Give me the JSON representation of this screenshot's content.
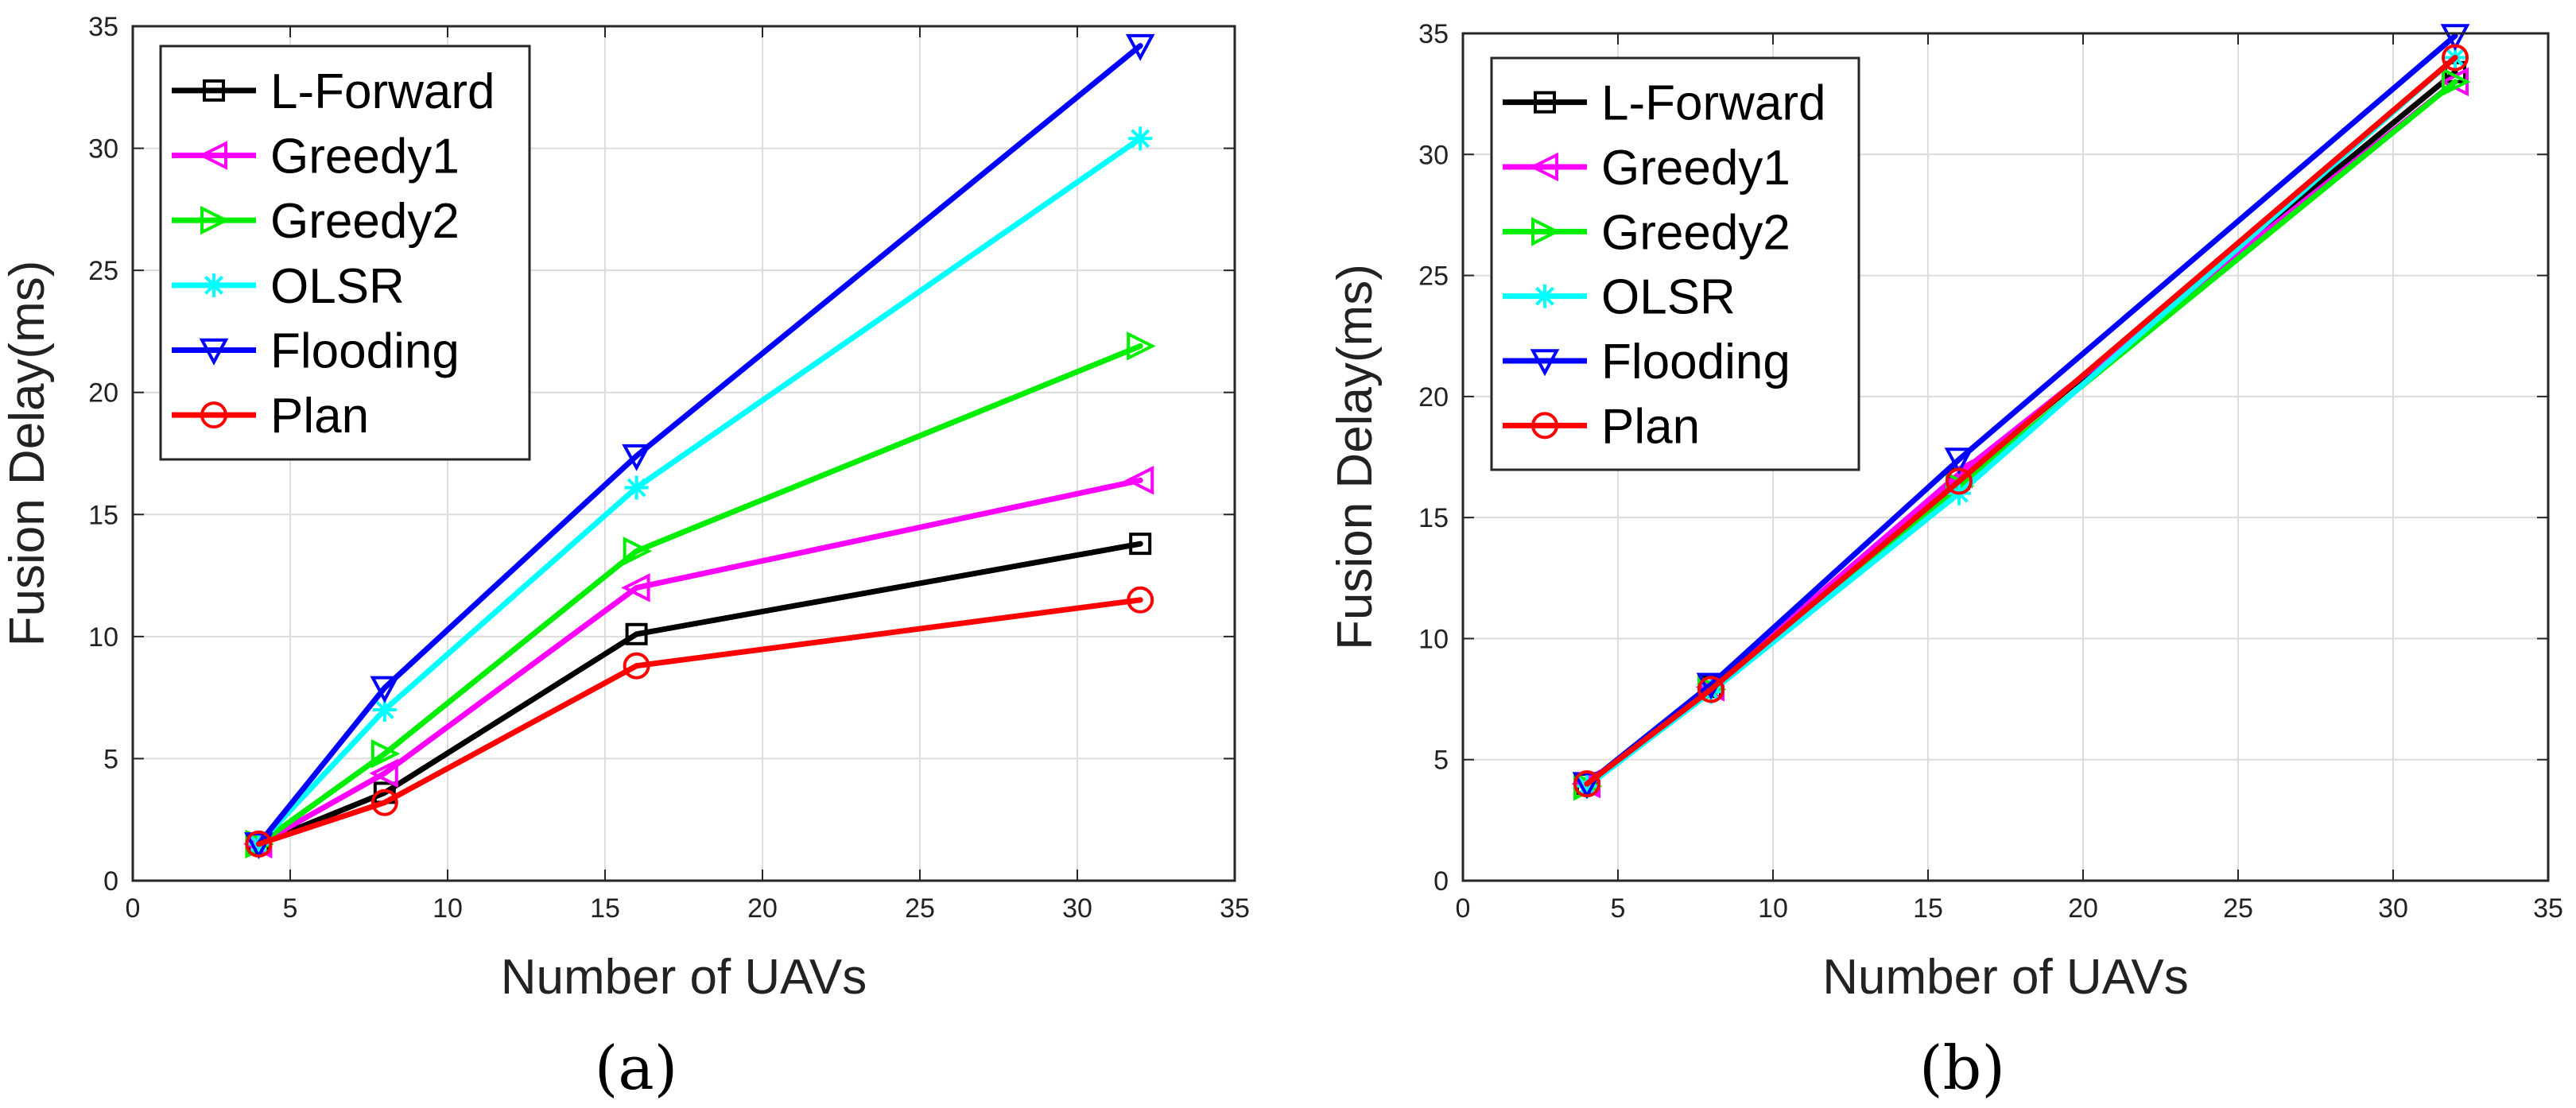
{
  "figure": {
    "panels": [
      "(a)",
      "(b)"
    ]
  },
  "chart_data": [
    {
      "type": "line",
      "caption": "(a)",
      "xlabel": "Number of UAVs",
      "ylabel": "Fusion Delay(ms)",
      "xlim": [
        0,
        35
      ],
      "ylim": [
        0,
        35
      ],
      "xticks": [
        0,
        5,
        10,
        15,
        20,
        25,
        30,
        35
      ],
      "yticks": [
        0,
        5,
        10,
        15,
        20,
        25,
        30,
        35
      ],
      "grid": true,
      "legend_position": "top-left",
      "x": [
        4,
        8,
        16,
        32
      ],
      "series": [
        {
          "name": "L-Forward",
          "color": "#000000",
          "marker": "square",
          "values": [
            1.5,
            3.6,
            10.1,
            13.8
          ]
        },
        {
          "name": "Greedy1",
          "color": "#ff00ff",
          "marker": "triangle-left",
          "values": [
            1.5,
            4.4,
            12.0,
            16.4
          ]
        },
        {
          "name": "Greedy2",
          "color": "#00ee00",
          "marker": "triangle-right",
          "values": [
            1.5,
            5.2,
            13.5,
            21.9
          ]
        },
        {
          "name": "OLSR",
          "color": "#00ffff",
          "marker": "asterisk",
          "values": [
            1.5,
            7.0,
            16.1,
            30.4
          ]
        },
        {
          "name": "Flooding",
          "color": "#0000ff",
          "marker": "triangle-down",
          "values": [
            1.5,
            7.9,
            17.4,
            34.2
          ]
        },
        {
          "name": "Plan",
          "color": "#ff0000",
          "marker": "circle",
          "values": [
            1.5,
            3.2,
            8.8,
            11.5
          ]
        }
      ]
    },
    {
      "type": "line",
      "caption": "(b)",
      "xlabel": "Number of UAVs",
      "ylabel": "Fusion Delay(ms)",
      "xlim": [
        0,
        35
      ],
      "ylim": [
        0,
        35
      ],
      "xticks": [
        0,
        5,
        10,
        15,
        20,
        25,
        30,
        35
      ],
      "yticks": [
        0,
        5,
        10,
        15,
        20,
        25,
        30,
        35
      ],
      "grid": true,
      "legend_position": "top-left",
      "x": [
        4,
        8,
        16,
        32
      ],
      "series": [
        {
          "name": "L-Forward",
          "color": "#000000",
          "marker": "square",
          "values": [
            4.0,
            8.0,
            16.6,
            33.4
          ]
        },
        {
          "name": "Greedy1",
          "color": "#ff00ff",
          "marker": "triangle-left",
          "values": [
            4.0,
            8.0,
            16.8,
            33.0
          ]
        },
        {
          "name": "Greedy2",
          "color": "#00ee00",
          "marker": "triangle-right",
          "values": [
            3.9,
            7.9,
            16.3,
            33.0
          ]
        },
        {
          "name": "OLSR",
          "color": "#00ffff",
          "marker": "asterisk",
          "values": [
            3.9,
            7.8,
            16.0,
            34.0
          ]
        },
        {
          "name": "Flooding",
          "color": "#0000ff",
          "marker": "triangle-down",
          "values": [
            4.0,
            8.1,
            17.4,
            34.9
          ]
        },
        {
          "name": "Plan",
          "color": "#ff0000",
          "marker": "circle",
          "values": [
            4.0,
            7.9,
            16.5,
            34.0
          ]
        }
      ]
    }
  ]
}
